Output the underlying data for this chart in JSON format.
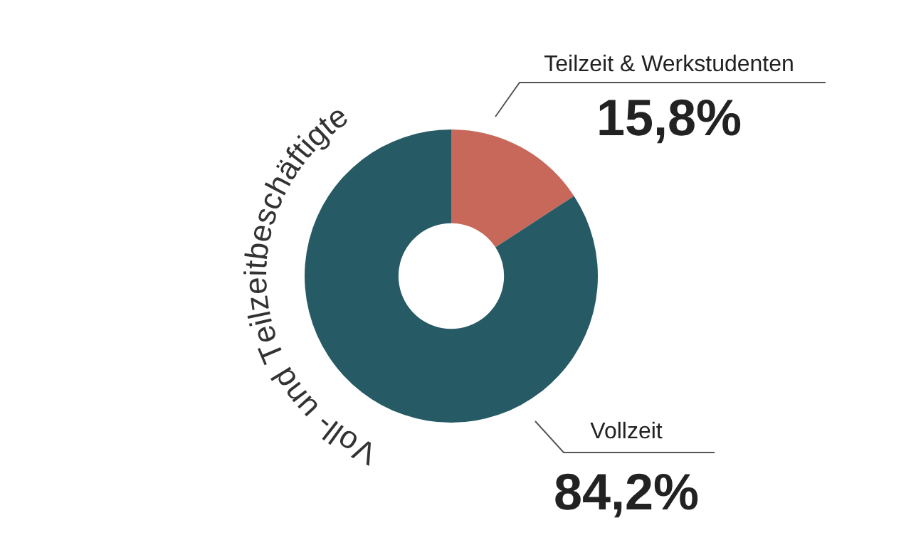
{
  "chart_data": {
    "type": "donut",
    "title": "Voll- und Teilzeitbeschäftigte",
    "categories": [
      "Teilzeit & Werkstudenten",
      "Vollzeit"
    ],
    "values": [
      15.8,
      84.2
    ],
    "value_labels": [
      "15,8%",
      "84,2%"
    ],
    "colors": [
      "#c8685a",
      "#265a64"
    ],
    "legend": false
  }
}
